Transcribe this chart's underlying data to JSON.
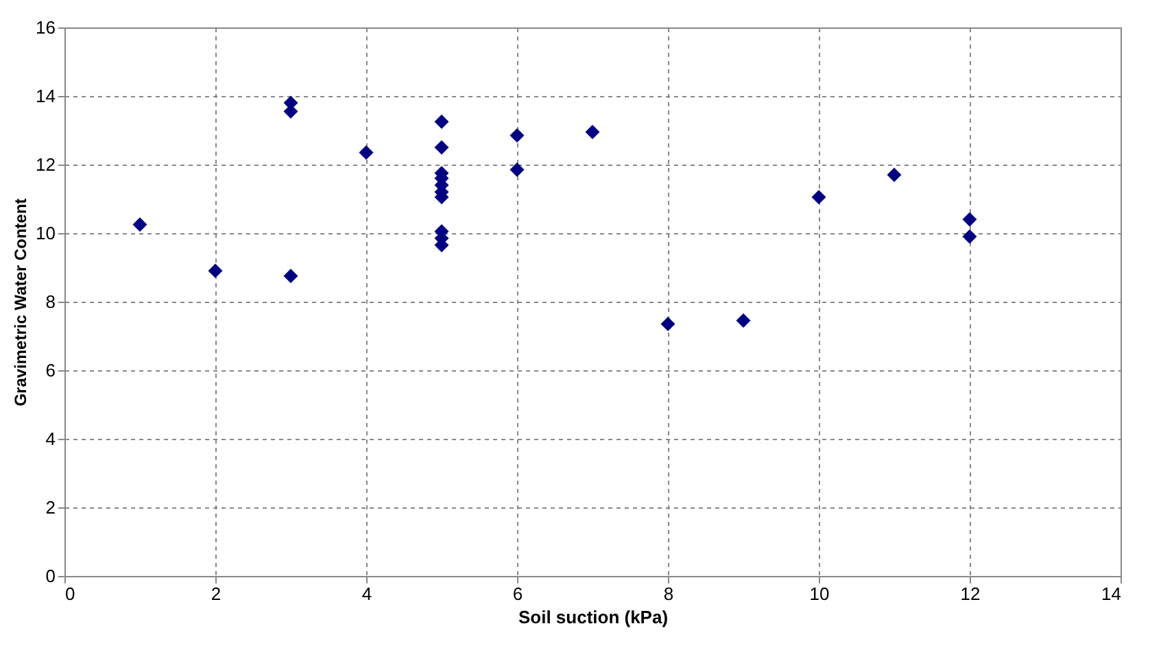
{
  "chart_data": {
    "type": "scatter",
    "xlabel": "Soil suction (kPa)",
    "ylabel": "Gravimetric Water Content",
    "x": [
      1,
      2,
      3,
      3,
      3,
      4,
      5,
      5,
      5,
      5,
      5,
      5,
      5,
      5,
      5,
      5,
      6,
      6,
      7,
      8,
      9,
      10,
      11,
      12,
      12
    ],
    "series": [
      {
        "color": "#000080",
        "values": [
          10.25,
          8.9,
          13.8,
          13.55,
          8.75,
          12.35,
          13.25,
          12.5,
          11.75,
          11.6,
          11.4,
          11.2,
          11.05,
          10.05,
          9.85,
          9.65,
          12.85,
          11.85,
          12.95,
          7.35,
          7.45,
          11.05,
          11.7,
          10.4,
          9.9
        ]
      }
    ],
    "xlim": [
      0,
      14
    ],
    "xticks": [
      0,
      2,
      4,
      6,
      8,
      10,
      12,
      14
    ],
    "ylim": [
      0,
      16
    ],
    "yticks": [
      0,
      2,
      4,
      6,
      8,
      10,
      12,
      14,
      16
    ],
    "grid": true,
    "marker": "diamond"
  }
}
